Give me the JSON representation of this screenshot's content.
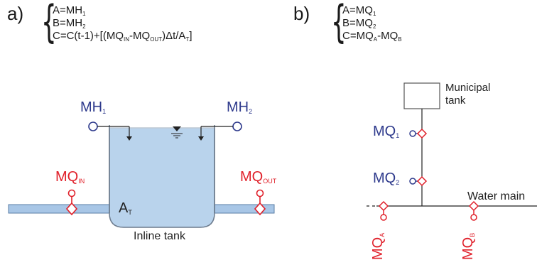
{
  "panels": {
    "a": {
      "label": "a)",
      "equations": {
        "line1": "A=MH",
        "line1_sub": "1",
        "line2": "B=MH",
        "line2_sub": "2",
        "line3_pre": "C=C(t-1)+[(MQ",
        "line3_sub1": "IN",
        "line3_mid": "-MQ",
        "line3_sub2": "OUT",
        "line3_post": ")Δt/A",
        "line3_sub3": "T",
        "line3_end": "]"
      },
      "diagram": {
        "mh1": "MH",
        "mh1_sub": "1",
        "mh2": "MH",
        "mh2_sub": "2",
        "mq_in": "MQ",
        "mq_in_sub": "IN",
        "mq_out": "MQ",
        "mq_out_sub": "OUT",
        "area": "A",
        "area_sub": "T",
        "tank_label": "Inline tank"
      }
    },
    "b": {
      "label": "b)",
      "equations": {
        "line1": "A=MQ",
        "line1_sub": "1",
        "line2": "B=MQ",
        "line2_sub": "2",
        "line3_pre": "C=MQ",
        "line3_sub1": "A",
        "line3_mid": "-MQ",
        "line3_sub2": "B"
      },
      "diagram": {
        "municipal_line1": "Municipal",
        "municipal_line2": "tank",
        "mq1": "MQ",
        "mq1_sub": "1",
        "mq2": "MQ",
        "mq2_sub": "2",
        "water_main": "Water main",
        "mqa": "MQ",
        "mqa_sub": "A",
        "mqb": "MQ",
        "mqb_sub": "B"
      }
    }
  },
  "colors": {
    "blue_label": "#2e3a8c",
    "red_label": "#e0202a",
    "tank_fill": "#b9d3ec",
    "pipe_fill": "#a8c6e6"
  }
}
